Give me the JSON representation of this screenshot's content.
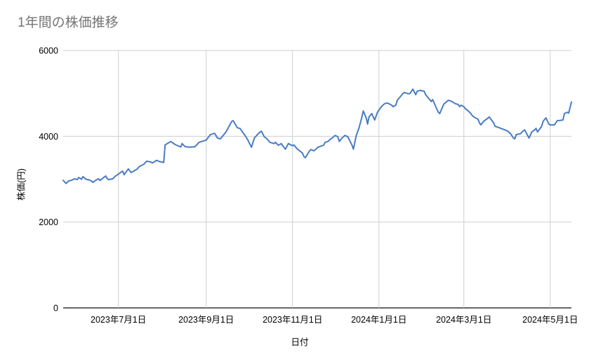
{
  "chart": {
    "title": "1年間の株価推移",
    "title_color": "#757575",
    "x_axis_title": "日付",
    "y_axis_title": "株価(円)",
    "line_color": "#4a7cc2",
    "grid_color": "#cfcfcf",
    "axis_color": "#333333",
    "tick_label_color": "#000000",
    "background_color": "#ffffff"
  },
  "chart_data": {
    "type": "line",
    "title": "1年間の株価推移",
    "xlabel": "日付",
    "ylabel": "株価(円)",
    "ylim": [
      0,
      6000
    ],
    "grid": true,
    "legend": false,
    "y_ticks": [
      0,
      2000,
      4000,
      6000
    ],
    "x_ticks": [
      {
        "date": "2023-07-01",
        "label": "2023年7月1日"
      },
      {
        "date": "2023-09-01",
        "label": "2023年9月1日"
      },
      {
        "date": "2023-11-01",
        "label": "2023年11月1日"
      },
      {
        "date": "2024-01-01",
        "label": "2024年1月1日"
      },
      {
        "date": "2024-03-01",
        "label": "2024年3月1日"
      },
      {
        "date": "2024-05-01",
        "label": "2024年5月1日"
      }
    ],
    "series": [
      {
        "name": "株価",
        "points": [
          [
            "2023-05-23",
            2975
          ],
          [
            "2023-05-25",
            2900
          ],
          [
            "2023-05-27",
            2960
          ],
          [
            "2023-05-29",
            2975
          ],
          [
            "2023-05-31",
            3010
          ],
          [
            "2023-06-02",
            2990
          ],
          [
            "2023-06-03",
            3040
          ],
          [
            "2023-06-05",
            3000
          ],
          [
            "2023-06-06",
            3060
          ],
          [
            "2023-06-08",
            3000
          ],
          [
            "2023-06-10",
            2985
          ],
          [
            "2023-06-12",
            2960
          ],
          [
            "2023-06-13",
            2925
          ],
          [
            "2023-06-15",
            2975
          ],
          [
            "2023-06-17",
            3010
          ],
          [
            "2023-06-18",
            2970
          ],
          [
            "2023-06-22",
            3075
          ],
          [
            "2023-06-23",
            3020
          ],
          [
            "2023-06-24",
            2990
          ],
          [
            "2023-06-27",
            3010
          ],
          [
            "2023-06-29",
            3075
          ],
          [
            "2023-07-01",
            3120
          ],
          [
            "2023-07-04",
            3190
          ],
          [
            "2023-07-05",
            3105
          ],
          [
            "2023-07-08",
            3240
          ],
          [
            "2023-07-10",
            3155
          ],
          [
            "2023-07-14",
            3230
          ],
          [
            "2023-07-16",
            3300
          ],
          [
            "2023-07-19",
            3350
          ],
          [
            "2023-07-21",
            3420
          ],
          [
            "2023-07-24",
            3400
          ],
          [
            "2023-07-25",
            3380
          ],
          [
            "2023-07-28",
            3440
          ],
          [
            "2023-07-30",
            3410
          ],
          [
            "2023-08-02",
            3390
          ],
          [
            "2023-08-03",
            3800
          ],
          [
            "2023-08-07",
            3880
          ],
          [
            "2023-08-10",
            3810
          ],
          [
            "2023-08-14",
            3750
          ],
          [
            "2023-08-15",
            3830
          ],
          [
            "2023-08-17",
            3760
          ],
          [
            "2023-08-20",
            3745
          ],
          [
            "2023-08-24",
            3755
          ],
          [
            "2023-08-27",
            3860
          ],
          [
            "2023-09-01",
            3910
          ],
          [
            "2023-09-04",
            4040
          ],
          [
            "2023-09-07",
            4070
          ],
          [
            "2023-09-09",
            3960
          ],
          [
            "2023-09-11",
            3940
          ],
          [
            "2023-09-15",
            4100
          ],
          [
            "2023-09-19",
            4345
          ],
          [
            "2023-09-20",
            4365
          ],
          [
            "2023-09-23",
            4200
          ],
          [
            "2023-09-25",
            4180
          ],
          [
            "2023-09-29",
            3990
          ],
          [
            "2023-09-30",
            3940
          ],
          [
            "2023-10-03",
            3745
          ],
          [
            "2023-10-05",
            3960
          ],
          [
            "2023-10-08",
            4070
          ],
          [
            "2023-10-10",
            4120
          ],
          [
            "2023-10-12",
            3990
          ],
          [
            "2023-10-14",
            3940
          ],
          [
            "2023-10-16",
            3860
          ],
          [
            "2023-10-19",
            3830
          ],
          [
            "2023-10-20",
            3860
          ],
          [
            "2023-10-22",
            3790
          ],
          [
            "2023-10-24",
            3830
          ],
          [
            "2023-10-25",
            3780
          ],
          [
            "2023-10-27",
            3700
          ],
          [
            "2023-10-29",
            3830
          ],
          [
            "2023-11-01",
            3780
          ],
          [
            "2023-11-02",
            3800
          ],
          [
            "2023-11-04",
            3715
          ],
          [
            "2023-11-06",
            3660
          ],
          [
            "2023-11-08",
            3610
          ],
          [
            "2023-11-09",
            3530
          ],
          [
            "2023-11-10",
            3500
          ],
          [
            "2023-11-13",
            3660
          ],
          [
            "2023-11-14",
            3690
          ],
          [
            "2023-11-16",
            3660
          ],
          [
            "2023-11-18",
            3715
          ],
          [
            "2023-11-19",
            3745
          ],
          [
            "2023-11-21",
            3770
          ],
          [
            "2023-11-23",
            3795
          ],
          [
            "2023-11-24",
            3860
          ],
          [
            "2023-11-26",
            3880
          ],
          [
            "2023-11-28",
            3940
          ],
          [
            "2023-11-29",
            3960
          ],
          [
            "2023-12-01",
            4020
          ],
          [
            "2023-12-03",
            3990
          ],
          [
            "2023-12-04",
            3880
          ],
          [
            "2023-12-06",
            3960
          ],
          [
            "2023-12-08",
            4020
          ],
          [
            "2023-12-10",
            3990
          ],
          [
            "2023-12-13",
            3795
          ],
          [
            "2023-12-14",
            3700
          ],
          [
            "2023-12-16",
            4020
          ],
          [
            "2023-12-18",
            4200
          ],
          [
            "2023-12-20",
            4450
          ],
          [
            "2023-12-21",
            4590
          ],
          [
            "2023-12-23",
            4430
          ],
          [
            "2023-12-24",
            4285
          ],
          [
            "2023-12-25",
            4450
          ],
          [
            "2023-12-27",
            4530
          ],
          [
            "2023-12-29",
            4380
          ],
          [
            "2023-12-31",
            4560
          ],
          [
            "2024-01-01",
            4610
          ],
          [
            "2024-01-03",
            4700
          ],
          [
            "2024-01-05",
            4760
          ],
          [
            "2024-01-07",
            4775
          ],
          [
            "2024-01-08",
            4760
          ],
          [
            "2024-01-10",
            4725
          ],
          [
            "2024-01-11",
            4690
          ],
          [
            "2024-01-13",
            4725
          ],
          [
            "2024-01-14",
            4840
          ],
          [
            "2024-01-16",
            4920
          ],
          [
            "2024-01-18",
            5000
          ],
          [
            "2024-01-19",
            5020
          ],
          [
            "2024-01-22",
            4990
          ],
          [
            "2024-01-23",
            5000
          ],
          [
            "2024-01-25",
            5100
          ],
          [
            "2024-01-27",
            4970
          ],
          [
            "2024-01-28",
            5050
          ],
          [
            "2024-01-30",
            5070
          ],
          [
            "2024-02-02",
            5050
          ],
          [
            "2024-02-03",
            4970
          ],
          [
            "2024-02-05",
            4890
          ],
          [
            "2024-02-07",
            4810
          ],
          [
            "2024-02-08",
            4855
          ],
          [
            "2024-02-10",
            4700
          ],
          [
            "2024-02-12",
            4560
          ],
          [
            "2024-02-13",
            4530
          ],
          [
            "2024-02-15",
            4690
          ],
          [
            "2024-02-16",
            4760
          ],
          [
            "2024-02-17",
            4780
          ],
          [
            "2024-02-19",
            4840
          ],
          [
            "2024-02-21",
            4820
          ],
          [
            "2024-02-22",
            4800
          ],
          [
            "2024-02-24",
            4760
          ],
          [
            "2024-02-26",
            4740
          ],
          [
            "2024-02-27",
            4690
          ],
          [
            "2024-02-28",
            4725
          ],
          [
            "2024-03-01",
            4690
          ],
          [
            "2024-03-02",
            4645
          ],
          [
            "2024-03-04",
            4595
          ],
          [
            "2024-03-06",
            4530
          ],
          [
            "2024-03-07",
            4480
          ],
          [
            "2024-03-09",
            4430
          ],
          [
            "2024-03-11",
            4400
          ],
          [
            "2024-03-12",
            4315
          ],
          [
            "2024-03-13",
            4265
          ],
          [
            "2024-03-15",
            4350
          ],
          [
            "2024-03-17",
            4400
          ],
          [
            "2024-03-19",
            4450
          ],
          [
            "2024-03-22",
            4315
          ],
          [
            "2024-03-23",
            4235
          ],
          [
            "2024-03-26",
            4200
          ],
          [
            "2024-03-27",
            4185
          ],
          [
            "2024-03-30",
            4150
          ],
          [
            "2024-04-01",
            4120
          ],
          [
            "2024-04-03",
            4060
          ],
          [
            "2024-04-05",
            3960
          ],
          [
            "2024-04-06",
            3940
          ],
          [
            "2024-04-07",
            4040
          ],
          [
            "2024-04-10",
            4060
          ],
          [
            "2024-04-11",
            4100
          ],
          [
            "2024-04-13",
            4150
          ],
          [
            "2024-04-16",
            3960
          ],
          [
            "2024-04-18",
            4100
          ],
          [
            "2024-04-20",
            4150
          ],
          [
            "2024-04-21",
            4185
          ],
          [
            "2024-04-22",
            4100
          ],
          [
            "2024-04-25",
            4235
          ],
          [
            "2024-04-26",
            4350
          ],
          [
            "2024-04-28",
            4430
          ],
          [
            "2024-04-30",
            4285
          ],
          [
            "2024-05-01",
            4265
          ],
          [
            "2024-05-04",
            4265
          ],
          [
            "2024-05-06",
            4365
          ],
          [
            "2024-05-08",
            4370
          ],
          [
            "2024-05-10",
            4380
          ],
          [
            "2024-05-11",
            4530
          ],
          [
            "2024-05-13",
            4560
          ],
          [
            "2024-05-14",
            4540
          ],
          [
            "2024-05-16",
            4800
          ]
        ]
      }
    ]
  }
}
